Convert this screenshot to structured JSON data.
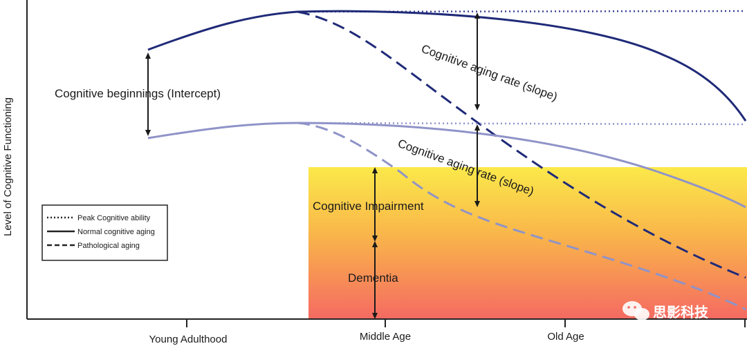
{
  "y_axis_label": "Level of Cognitive Functioning",
  "x_axis_ticks": [
    "Young Adulthood",
    "Middle Age",
    "Old Age"
  ],
  "annotations": {
    "intercept": "Cognitive beginnings (Intercept)",
    "slope_upper": "Cognitive aging rate (slope)",
    "slope_lower": "Cognitive aging rate (slope)",
    "impairment": "Cognitive Impairment",
    "dementia": "Dementia"
  },
  "legend": {
    "peak": "Peak Cognitive ability",
    "normal": "Normal cognitive aging",
    "pathological": "Pathological aging"
  },
  "watermark": "思影科技",
  "colors": {
    "high_curve": "#1f2a78",
    "low_curve": "#8f93c8",
    "zone_top": "#fbe94a",
    "zone_bottom": "#f56a62",
    "axis": "#222222"
  }
}
